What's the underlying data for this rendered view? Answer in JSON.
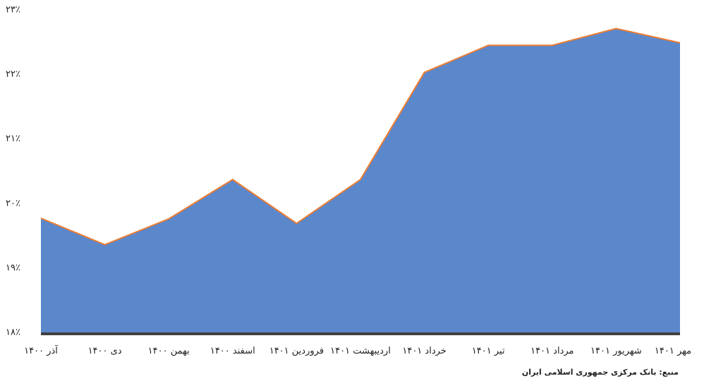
{
  "chart_data": {
    "type": "area",
    "categories": [
      "آذر ۱۴۰۰",
      "دی ۱۴۰۰",
      "بهمن ۱۴۰۰",
      "اسفند ۱۴۰۰",
      "فروردین ۱۴۰۱",
      "اردیبهشت ۱۴۰۱",
      "خرداد ۱۴۰۱",
      "تیر ۱۴۰۱",
      "مرداد ۱۴۰۱",
      "شهریور ۱۴۰۱",
      "مهر ۱۴۰۱"
    ],
    "values": [
      19.77,
      19.36,
      19.76,
      20.37,
      19.69,
      20.37,
      22.03,
      22.45,
      22.45,
      22.71,
      22.49
    ],
    "color": "#5b87cb",
    "line_color": "#ed7d31",
    "ylim": [
      18,
      23
    ],
    "yticks": [
      {
        "value": 18,
        "label": "۱۸٪"
      },
      {
        "value": 19,
        "label": "۱۹٪"
      },
      {
        "value": 20,
        "label": "۲۰٪"
      },
      {
        "value": 21,
        "label": "۲۱٪"
      },
      {
        "value": 22,
        "label": "۲۲٪"
      },
      {
        "value": 23,
        "label": "۲۳٪"
      }
    ],
    "grid": false,
    "source": "منبع: بانک مرکزی جمهوری اسلامی ایران"
  }
}
